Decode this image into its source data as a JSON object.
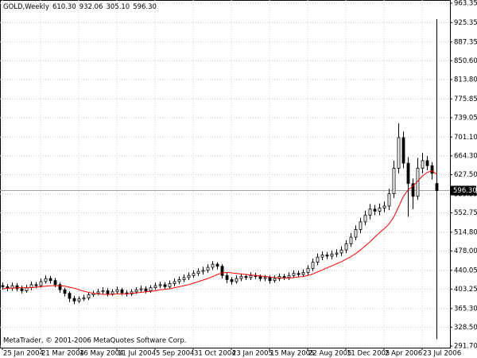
{
  "chart_data": {
    "type": "candlestick",
    "symbol": "GOLD,Weekly",
    "header_values": [
      "610.30",
      "932.06",
      "305.10",
      "596.30"
    ],
    "footer": "MetaTrader, © 2001-2006 MetaQuotes Software Corp.",
    "current_price": {
      "value": 596.3,
      "label": "596.30"
    },
    "categories": [
      "25 Jan 2004",
      null,
      null,
      null,
      null,
      null,
      null,
      null,
      "21 Mar 2004",
      null,
      null,
      null,
      null,
      null,
      null,
      null,
      "16 May 2004",
      null,
      null,
      null,
      null,
      null,
      null,
      null,
      "11 Jul 2004",
      null,
      null,
      null,
      null,
      null,
      null,
      null,
      "5 Sep 2004",
      null,
      null,
      null,
      null,
      null,
      null,
      null,
      "31 Oct 2004",
      null,
      null,
      null,
      null,
      null,
      null,
      null,
      "23 Jan 2005",
      null,
      null,
      null,
      null,
      null,
      null,
      null,
      "15 May 2005",
      null,
      null,
      null,
      null,
      null,
      null,
      null,
      "22 Aug 2005",
      null,
      null,
      null,
      null,
      null,
      null,
      null,
      "11 Dec 2005",
      null,
      null,
      null,
      null,
      null,
      null,
      null,
      "2 Apr 2006",
      null,
      null,
      null,
      null,
      null,
      null,
      null,
      "23 Jul 2006",
      null,
      null,
      null
    ],
    "open": [
      410,
      408,
      405,
      410,
      404,
      400,
      406,
      412,
      410,
      418,
      424,
      420,
      412,
      402,
      395,
      385,
      380,
      384,
      386,
      392,
      395,
      398,
      400,
      394,
      398,
      402,
      396,
      394,
      398,
      402,
      404,
      400,
      406,
      410,
      412,
      408,
      414,
      418,
      422,
      426,
      430,
      434,
      438,
      440,
      446,
      452,
      448,
      430,
      422,
      418,
      424,
      428,
      426,
      430,
      428,
      424,
      426,
      420,
      424,
      428,
      426,
      430,
      434,
      432,
      436,
      444,
      456,
      466,
      470,
      468,
      472,
      474,
      480,
      492,
      505,
      520,
      535,
      548,
      560,
      556,
      562,
      566,
      590,
      640,
      700,
      650,
      610,
      585,
      640,
      655,
      645,
      610.3
    ],
    "high": [
      416,
      413,
      416,
      415,
      410,
      412,
      418,
      417,
      424,
      430,
      429,
      425,
      416,
      406,
      399,
      390,
      389,
      392,
      397,
      400,
      404,
      407,
      405,
      403,
      408,
      406,
      401,
      403,
      407,
      410,
      409,
      411,
      416,
      418,
      417,
      420,
      424,
      428,
      432,
      436,
      440,
      444,
      447,
      452,
      458,
      456,
      452,
      435,
      427,
      430,
      434,
      433,
      436,
      435,
      432,
      431,
      430,
      430,
      434,
      433,
      436,
      440,
      439,
      442,
      450,
      463,
      473,
      477,
      476,
      479,
      481,
      487,
      499,
      513,
      528,
      543,
      557,
      570,
      568,
      571,
      575,
      600,
      655,
      728,
      712,
      662,
      620,
      660,
      670,
      664,
      652,
      932.06
    ],
    "low": [
      402,
      399,
      400,
      399,
      395,
      396,
      401,
      405,
      406,
      414,
      414,
      407,
      396,
      389,
      378,
      374,
      376,
      380,
      382,
      388,
      391,
      394,
      389,
      390,
      393,
      391,
      389,
      390,
      394,
      397,
      395,
      396,
      402,
      405,
      403,
      404,
      409,
      413,
      417,
      421,
      425,
      429,
      432,
      435,
      441,
      442,
      424,
      415,
      412,
      414,
      419,
      421,
      421,
      423,
      419,
      419,
      414,
      416,
      419,
      421,
      421,
      425,
      427,
      427,
      431,
      439,
      450,
      460,
      462,
      462,
      466,
      468,
      474,
      486,
      499,
      513,
      528,
      540,
      548,
      548,
      554,
      558,
      582,
      630,
      640,
      545,
      560,
      578,
      630,
      636,
      618,
      305.1
    ],
    "close": [
      408,
      405,
      410,
      404,
      400,
      406,
      412,
      410,
      418,
      424,
      420,
      412,
      402,
      395,
      385,
      380,
      384,
      386,
      392,
      395,
      398,
      400,
      394,
      398,
      402,
      396,
      394,
      398,
      402,
      404,
      400,
      406,
      410,
      412,
      408,
      414,
      418,
      422,
      426,
      430,
      434,
      438,
      440,
      446,
      452,
      448,
      430,
      422,
      418,
      424,
      428,
      426,
      430,
      428,
      424,
      426,
      420,
      424,
      428,
      426,
      430,
      434,
      432,
      436,
      444,
      456,
      466,
      470,
      468,
      472,
      474,
      480,
      492,
      505,
      520,
      535,
      548,
      560,
      556,
      562,
      566,
      590,
      640,
      700,
      650,
      610,
      585,
      640,
      655,
      645,
      630,
      596.3
    ],
    "ma": {
      "color": "#ff0000",
      "values": [
        404,
        405,
        405,
        406,
        406,
        406,
        406,
        407,
        408,
        409,
        410,
        410,
        410,
        409,
        407,
        405,
        402,
        399,
        397,
        395,
        394,
        393,
        393,
        393,
        394,
        394,
        394,
        395,
        396,
        397,
        398,
        399,
        400,
        402,
        403,
        404,
        406,
        408,
        410,
        412,
        415,
        418,
        421,
        424,
        428,
        432,
        435,
        436,
        435,
        434,
        433,
        432,
        431,
        430,
        429,
        428,
        427,
        426,
        425,
        425,
        425,
        426,
        427,
        428,
        430,
        433,
        437,
        441,
        445,
        449,
        453,
        457,
        462,
        467,
        473,
        480,
        488,
        496,
        505,
        514,
        522,
        531,
        545,
        565,
        585,
        598,
        605,
        615,
        625,
        632,
        635,
        628
      ]
    },
    "ylim": [
      288.6,
      969.6
    ],
    "yticks": [
      963.35,
      925.35,
      887.35,
      {
        "value": 850.6,
        "label": "850.60"
      },
      {
        "value": 813.8,
        "label": "813.80"
      },
      775.85,
      739.05,
      {
        "value": 701.1,
        "label": "701.10"
      },
      {
        "value": 664.3,
        "label": "664.30"
      },
      {
        "value": 627.5,
        "label": "627.50"
      },
      589.55,
      552.75,
      {
        "value": 514.8,
        "label": "514.80"
      },
      {
        "value": 478.0,
        "label": "478.00"
      },
      440.05,
      403.25,
      {
        "value": 365.3,
        "label": "365.30"
      },
      {
        "value": 328.5,
        "label": "328.50"
      },
      {
        "value": 291.7,
        "label": "291.70"
      }
    ],
    "grid": true
  }
}
